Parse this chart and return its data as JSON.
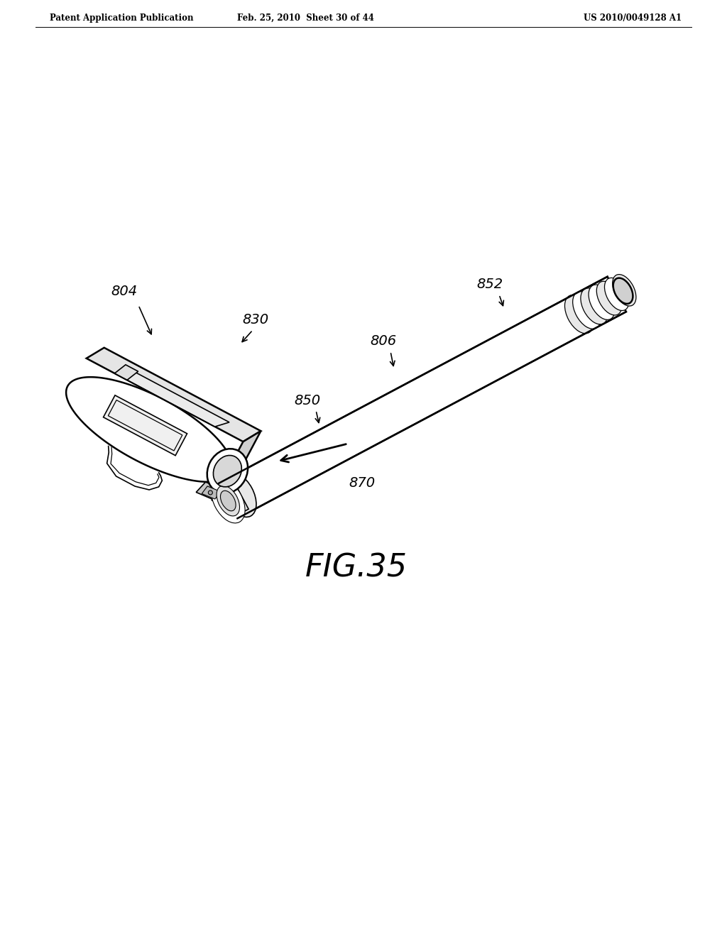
{
  "bg_color": "#ffffff",
  "header_left": "Patent Application Publication",
  "header_mid": "Feb. 25, 2010  Sheet 30 of 44",
  "header_right": "US 2010/0049128 A1",
  "fig_label": "FIG.35",
  "page_width": 10.24,
  "page_height": 13.2,
  "dpi": 100
}
